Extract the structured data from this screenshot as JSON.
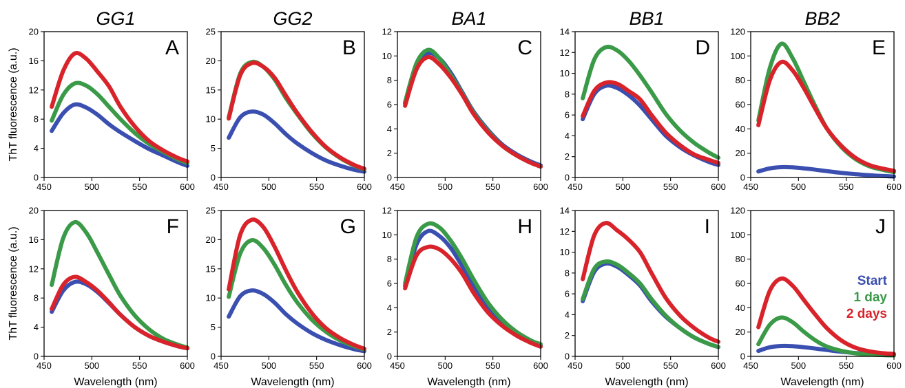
{
  "chart_data": {
    "type": "line",
    "columns": [
      "GG1",
      "GG2",
      "BA1",
      "BB1",
      "BB2"
    ],
    "xlabel": "Wavelength (nm)",
    "ylabel": "ThT fluorescence (a.u.)",
    "x": [
      458,
      470,
      482,
      494,
      506,
      518,
      530,
      545,
      560,
      575,
      590,
      600
    ],
    "legend": {
      "placement": "panel J, right",
      "entries": [
        {
          "name": "Start",
          "color": "#3a4fb0"
        },
        {
          "name": "1 day",
          "color": "#3a9a48"
        },
        {
          "name": "2 days",
          "color": "#d8232a"
        }
      ]
    },
    "panels": [
      {
        "letter": "A",
        "xlim": [
          450,
          600
        ],
        "ylim": [
          0,
          20
        ],
        "xticks": [
          450,
          500,
          550,
          600
        ],
        "yticks": [
          0,
          4,
          8,
          12,
          16,
          20
        ],
        "series": [
          {
            "name": "Start",
            "color": "#3a4fb0",
            "values": [
              6.4,
              8.8,
              10.0,
              9.6,
              8.6,
              7.3,
              6.2,
              5.0,
              3.9,
              3.0,
              2.1,
              1.6
            ]
          },
          {
            "name": "1 day",
            "color": "#3a9a48",
            "values": [
              7.8,
              11.3,
              12.9,
              12.6,
              11.4,
              9.7,
              8.0,
              6.1,
              4.6,
              3.5,
              2.5,
              2.0
            ]
          },
          {
            "name": "2 days",
            "color": "#d8232a",
            "values": [
              9.7,
              14.6,
              17.0,
              16.3,
              14.5,
              12.5,
              9.7,
              7.0,
              5.0,
              3.7,
              2.7,
              2.2
            ]
          }
        ]
      },
      {
        "letter": "B",
        "xlim": [
          450,
          600
        ],
        "ylim": [
          0,
          25
        ],
        "xticks": [
          450,
          500,
          550,
          600
        ],
        "yticks": [
          0,
          5,
          10,
          15,
          20,
          25
        ],
        "series": [
          {
            "name": "Start",
            "color": "#3a4fb0",
            "values": [
              6.8,
              10.3,
              11.3,
              10.8,
              9.3,
              7.4,
              5.8,
              4.2,
              2.9,
              2.0,
              1.3,
              1.0
            ]
          },
          {
            "name": "1 day",
            "color": "#3a9a48",
            "values": [
              10.3,
              17.8,
              19.8,
              19.0,
              16.8,
              13.6,
              10.8,
              7.6,
              5.1,
              3.3,
              2.0,
              1.4
            ]
          },
          {
            "name": "2 days",
            "color": "#d8232a",
            "values": [
              10.1,
              17.5,
              19.6,
              19.0,
              17.1,
              14.0,
              11.0,
              7.8,
              5.2,
              3.4,
              2.1,
              1.5
            ]
          }
        ]
      },
      {
        "letter": "C",
        "xlim": [
          450,
          600
        ],
        "ylim": [
          0,
          12
        ],
        "xticks": [
          450,
          500,
          550,
          600
        ],
        "yticks": [
          0,
          2,
          4,
          6,
          8,
          10,
          12
        ],
        "series": [
          {
            "name": "Start",
            "color": "#3a4fb0",
            "values": [
              6.1,
              8.9,
              10.2,
              9.8,
              8.6,
              7.0,
              5.4,
              3.9,
              2.7,
              1.9,
              1.3,
              1.0
            ]
          },
          {
            "name": "1 day",
            "color": "#3a9a48",
            "values": [
              6.2,
              9.4,
              10.5,
              9.8,
              8.4,
              6.9,
              5.3,
              3.8,
              2.6,
              1.8,
              1.2,
              0.9
            ]
          },
          {
            "name": "2 days",
            "color": "#d8232a",
            "values": [
              5.9,
              8.9,
              9.9,
              9.3,
              8.2,
              6.8,
              5.2,
              3.7,
              2.6,
              1.8,
              1.2,
              0.9
            ]
          }
        ]
      },
      {
        "letter": "D",
        "xlim": [
          450,
          600
        ],
        "ylim": [
          0,
          14
        ],
        "xticks": [
          450,
          500,
          550,
          600
        ],
        "yticks": [
          0,
          2,
          4,
          6,
          8,
          10,
          12,
          14
        ],
        "series": [
          {
            "name": "Start",
            "color": "#3a4fb0",
            "values": [
              5.6,
              8.0,
              8.8,
              8.6,
              7.9,
              6.9,
              5.6,
              4.0,
              2.9,
              2.1,
              1.5,
              1.2
            ]
          },
          {
            "name": "1 day",
            "color": "#3a9a48",
            "values": [
              7.6,
              11.3,
              12.5,
              12.2,
              11.2,
              9.8,
              8.2,
              6.1,
              4.5,
              3.3,
              2.4,
              1.9
            ]
          },
          {
            "name": "2 days",
            "color": "#d8232a",
            "values": [
              5.9,
              8.3,
              9.1,
              9.0,
              8.3,
              7.5,
              6.0,
              4.3,
              3.1,
              2.2,
              1.7,
              1.4
            ]
          }
        ]
      },
      {
        "letter": "E",
        "xlim": [
          450,
          600
        ],
        "ylim": [
          0,
          120
        ],
        "xticks": [
          450,
          500,
          550,
          600
        ],
        "yticks": [
          0,
          20,
          40,
          60,
          80,
          100,
          120
        ],
        "series": [
          {
            "name": "Start",
            "color": "#3a4fb0",
            "values": [
              5,
              7.5,
              8.5,
              8.3,
              7.5,
              6.4,
              5.2,
              3.8,
              2.7,
              1.8,
              1.2,
              0.8
            ]
          },
          {
            "name": "1 day",
            "color": "#3a9a48",
            "values": [
              47,
              90,
              110,
              98,
              78,
              58,
              40,
              25,
              15,
              9,
              6,
              4.5
            ]
          },
          {
            "name": "2 days",
            "color": "#d8232a",
            "values": [
              43,
              80,
              95,
              88,
              73,
              56,
              40,
              26,
              16,
              10,
              7,
              5.5
            ]
          }
        ]
      },
      {
        "letter": "F",
        "xlim": [
          450,
          600
        ],
        "ylim": [
          0,
          20
        ],
        "xticks": [
          450,
          500,
          550,
          600
        ],
        "yticks": [
          0,
          4,
          8,
          12,
          16,
          20
        ],
        "series": [
          {
            "name": "Start",
            "color": "#3a4fb0",
            "values": [
              6.1,
              9.0,
              10.2,
              9.9,
              8.8,
              7.3,
              5.7,
              4.0,
              2.8,
              2.0,
              1.4,
              1.1
            ]
          },
          {
            "name": "1 day",
            "color": "#3a9a48",
            "values": [
              9.8,
              16.2,
              18.4,
              17.0,
              14.2,
              11.2,
              8.3,
              5.6,
              3.7,
              2.4,
              1.6,
              1.2
            ]
          },
          {
            "name": "2 days",
            "color": "#d8232a",
            "values": [
              6.5,
              9.8,
              10.9,
              10.2,
              9.0,
              7.4,
              5.7,
              4.0,
              2.8,
              2.0,
              1.4,
              1.1
            ]
          }
        ]
      },
      {
        "letter": "G",
        "xlim": [
          450,
          600
        ],
        "ylim": [
          0,
          25
        ],
        "xticks": [
          450,
          500,
          550,
          600
        ],
        "yticks": [
          0,
          5,
          10,
          15,
          20,
          25
        ],
        "series": [
          {
            "name": "Start",
            "color": "#3a4fb0",
            "values": [
              6.8,
              10.3,
              11.3,
              10.7,
              9.2,
              7.2,
              5.6,
              4.0,
              2.8,
              1.9,
              1.2,
              0.9
            ]
          },
          {
            "name": "1 day",
            "color": "#3a9a48",
            "values": [
              10.2,
              17.6,
              19.9,
              18.6,
              15.7,
              12.2,
              9.2,
              6.3,
              4.2,
              2.7,
              1.7,
              1.2
            ]
          },
          {
            "name": "2 days",
            "color": "#d8232a",
            "values": [
              11.5,
              20.8,
              23.4,
              22.2,
              18.8,
              14.7,
              11.0,
              7.4,
              4.8,
              3.1,
              1.9,
              1.3
            ]
          }
        ]
      },
      {
        "letter": "H",
        "xlim": [
          450,
          600
        ],
        "ylim": [
          0,
          12
        ],
        "xticks": [
          450,
          500,
          550,
          600
        ],
        "yticks": [
          0,
          2,
          4,
          6,
          8,
          10,
          12
        ],
        "series": [
          {
            "name": "Start",
            "color": "#3a4fb0",
            "values": [
              5.8,
              9.2,
              10.3,
              9.9,
              8.9,
              7.4,
              5.8,
              4.1,
              2.8,
              1.9,
              1.2,
              0.9
            ]
          },
          {
            "name": "1 day",
            "color": "#3a9a48",
            "values": [
              6.0,
              9.8,
              10.9,
              10.6,
              9.5,
              8.0,
              6.3,
              4.4,
              3.0,
              2.0,
              1.3,
              1.0
            ]
          },
          {
            "name": "2 days",
            "color": "#d8232a",
            "values": [
              5.6,
              8.3,
              9.0,
              8.8,
              8.0,
              6.8,
              5.2,
              3.6,
              2.5,
              1.7,
              1.1,
              0.8
            ]
          }
        ]
      },
      {
        "letter": "I",
        "xlim": [
          450,
          600
        ],
        "ylim": [
          0,
          14
        ],
        "xticks": [
          450,
          500,
          550,
          600
        ],
        "yticks": [
          0,
          2,
          4,
          6,
          8,
          10,
          12,
          14
        ],
        "series": [
          {
            "name": "Start",
            "color": "#3a4fb0",
            "values": [
              5.3,
              8.1,
              8.9,
              8.6,
              7.8,
              6.8,
              5.3,
              3.8,
              2.7,
              1.8,
              1.2,
              0.9
            ]
          },
          {
            "name": "1 day",
            "color": "#3a9a48",
            "values": [
              5.5,
              8.4,
              9.1,
              8.8,
              8.0,
              7.0,
              5.5,
              3.9,
              2.7,
              1.8,
              1.2,
              0.9
            ]
          },
          {
            "name": "2 days",
            "color": "#d8232a",
            "values": [
              7.4,
              11.6,
              12.8,
              12.1,
              11.2,
              10.0,
              8.0,
              5.6,
              3.9,
              2.7,
              1.8,
              1.4
            ]
          }
        ]
      },
      {
        "letter": "J",
        "xlim": [
          450,
          600
        ],
        "ylim": [
          0,
          120
        ],
        "xticks": [
          450,
          500,
          550,
          600
        ],
        "yticks": [
          0,
          20,
          40,
          60,
          80,
          100,
          120
        ],
        "series": [
          {
            "name": "Start",
            "color": "#3a4fb0",
            "values": [
              4.5,
              7.5,
              8.5,
              8.3,
              7.5,
              6.4,
              5.2,
              3.8,
              2.7,
              1.8,
              1.2,
              0.8
            ]
          },
          {
            "name": "1 day",
            "color": "#3a9a48",
            "values": [
              10,
              26,
              32,
              28,
              20,
              13,
              8,
              4.5,
              2.5,
              1.5,
              1,
              0.8
            ]
          },
          {
            "name": "2 days",
            "color": "#d8232a",
            "values": [
              24,
              54,
              64,
              58,
              46,
              34,
              23,
              13,
              7,
              4,
              2.5,
              2
            ]
          }
        ]
      }
    ]
  }
}
